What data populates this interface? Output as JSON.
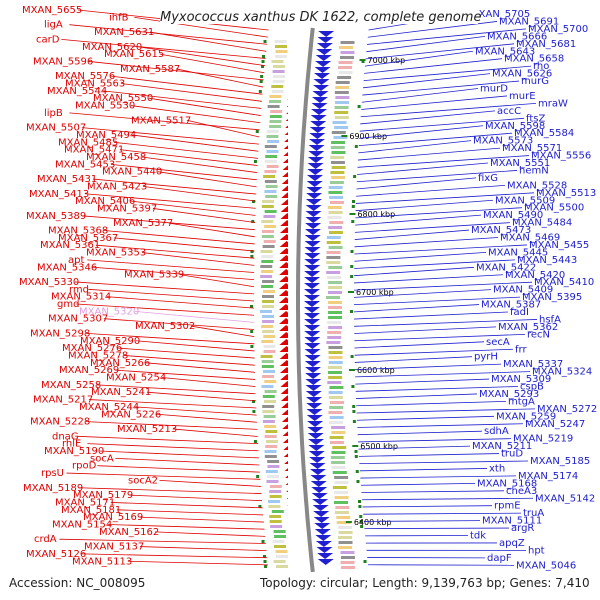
{
  "title": "Myxococcus xanthus DK 1622, complete genome",
  "accession": "Accession: NC_008095",
  "summary": "Topology: circular; Length: 9,139,763 bp; Genes: 7,410",
  "colors": {
    "forward": "#e00000",
    "reverse": "#2020d0",
    "muted": "#e0a0e0",
    "backbone": "#888888"
  },
  "kbp_ticks": [
    {
      "label": "7000 kbp",
      "side": "reverse"
    },
    {
      "label": "6900 kbp",
      "side": "forward"
    },
    {
      "label": "6800 kbp",
      "side": "reverse"
    },
    {
      "label": "6700 kbp",
      "side": "reverse"
    },
    {
      "label": "6600 kbp",
      "side": "reverse"
    },
    {
      "label": "6500 kbp",
      "side": "reverse"
    },
    {
      "label": "6400 kbp",
      "side": "forward"
    }
  ],
  "left_labels": [
    "MXAN_5655",
    "ihfB",
    "ligA",
    "MXAN_5631",
    "carD",
    "MXAN_5620",
    "MXAN_5615",
    "MXAN_5596",
    "MXAN_5587",
    "MXAN_5576",
    "MXAN_5563",
    "MXAN_5544",
    "MXAN_5550",
    "MXAN_5530",
    "lipB",
    "MXAN_5517",
    "MXAN_5507",
    "MXAN_5494",
    "MXAN_5485",
    "MXAN_5471",
    "MXAN_5458",
    "MXAN_5453",
    "MXAN_5440",
    "MXAN_5431",
    "MXAN_5423",
    "MXAN_5413",
    "MXAN_5406",
    "MXAN_5397",
    "MXAN_5389",
    "MXAN_5377",
    "MXAN_5368",
    "MXAN_5367",
    "MXAN_5361",
    "MXAN_5353",
    "apt",
    "MXAN_5346",
    "MXAN_5339",
    "MXAN_5330",
    "rmd",
    "MXAN_5314",
    "gmd",
    "MXAN_5320",
    "MXAN_5307",
    "MXAN_5302",
    "MXAN_5298",
    "MXAN_5290",
    "MXAN_5276",
    "MXAN_5278",
    "MXAN_5266",
    "MXAN_5269",
    "MXAN_5254",
    "MXAN_5258",
    "MXAN_5241",
    "MXAN_5217",
    "MXAN_5244",
    "MXAN_5226",
    "MXAN_5228",
    "MXAN_5213",
    "dnaG",
    "rhlE",
    "MXAN_5190",
    "socA",
    "rpoD",
    "rpsU",
    "socA2",
    "MXAN_5189",
    "MXAN_5179",
    "MXAN_5171",
    "MXAN_5181",
    "MXAN_5169",
    "MXAN_5154",
    "MXAN_5162",
    "crdA",
    "MXAN_5137",
    "MXAN_5126",
    "MXAN_5113"
  ],
  "right_labels": [
    "MXAN_5705",
    "MXAN_5691",
    "MXAN_5700",
    "MXAN_5666",
    "MXAN_5681",
    "MXAN_5643",
    "MXAN_5658",
    "rho",
    "MXAN_5626",
    "murG",
    "murD",
    "murE",
    "mraW",
    "accC",
    "ftsZ",
    "MXAN_5598",
    "MXAN_5584",
    "MXAN_5573",
    "MXAN_5571",
    "MXAN_5556",
    "MXAN_5551",
    "hemN",
    "fixG",
    "MXAN_5528",
    "MXAN_5513",
    "MXAN_5509",
    "MXAN_5500",
    "MXAN_5490",
    "MXAN_5484",
    "MXAN_5473",
    "MXAN_5469",
    "MXAN_5455",
    "MXAN_5445",
    "MXAN_5443",
    "MXAN_5422",
    "MXAN_5420",
    "MXAN_5410",
    "MXAN_5409",
    "MXAN_5395",
    "MXAN_5387",
    "fadI",
    "hsfA",
    "MXAN_5362",
    "recN",
    "secA",
    "frr",
    "pyrH",
    "MXAN_5337",
    "MXAN_5324",
    "MXAN_5309",
    "cspB",
    "MXAN_5293",
    "mtgA",
    "MXAN_5272",
    "MXAN_5259",
    "MXAN_5247",
    "sdhA",
    "MXAN_5219",
    "MXAN_5211",
    "truD",
    "MXAN_5185",
    "xth",
    "MXAN_5174",
    "MXAN_5168",
    "cheA3",
    "MXAN_5142",
    "rpmE",
    "truA",
    "MXAN_5111",
    "argR",
    "tdk",
    "apqZ",
    "hpt",
    "dapF",
    "MXAN_5046"
  ]
}
